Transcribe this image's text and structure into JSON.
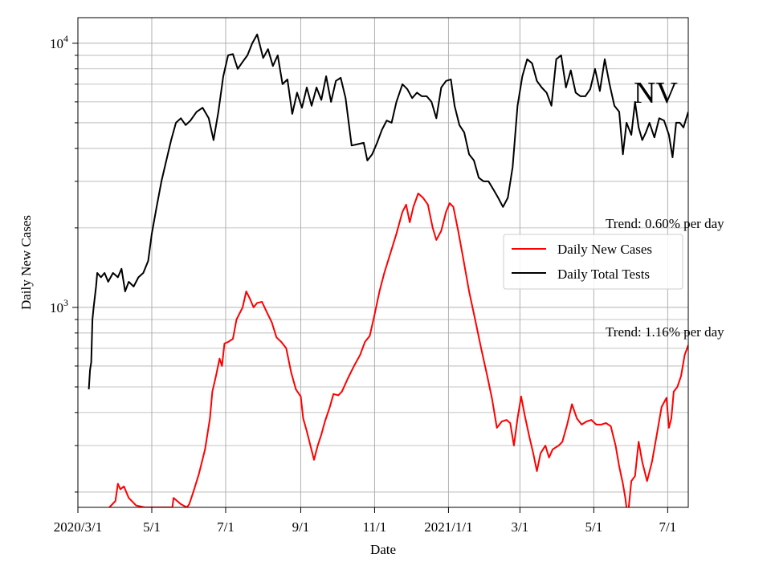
{
  "chart_data": {
    "type": "line",
    "title": "",
    "xlabel": "Date",
    "ylabel": "Daily New Cases",
    "yscale": "log",
    "ylim": [
      175,
      12500
    ],
    "xlim": [
      "2020-03-01",
      "2021-07-18"
    ],
    "grid": true,
    "legend_position": "right-middle",
    "x_ticks": [
      {
        "date": "2020-03-01",
        "label": "2020/3/1"
      },
      {
        "date": "2020-05-01",
        "label": "5/1"
      },
      {
        "date": "2020-07-01",
        "label": "7/1"
      },
      {
        "date": "2020-09-01",
        "label": "9/1"
      },
      {
        "date": "2020-11-01",
        "label": "11/1"
      },
      {
        "date": "2021-01-01",
        "label": "2021/1/1"
      },
      {
        "date": "2021-03-01",
        "label": "3/1"
      },
      {
        "date": "2021-05-01",
        "label": "5/1"
      },
      {
        "date": "2021-07-01",
        "label": "7/1"
      }
    ],
    "y_major_ticks": [
      {
        "value": 1000,
        "base": "10",
        "exp": "3"
      },
      {
        "value": 10000,
        "base": "10",
        "exp": "4"
      }
    ],
    "series": [
      {
        "name": "Daily New Cases",
        "color": "#ff0000",
        "points": [
          [
            "2020-03-27",
            175
          ],
          [
            "2020-04-01",
            185
          ],
          [
            "2020-04-03",
            215
          ],
          [
            "2020-04-05",
            205
          ],
          [
            "2020-04-08",
            210
          ],
          [
            "2020-04-12",
            190
          ],
          [
            "2020-04-18",
            178
          ],
          [
            "2020-04-25",
            175
          ],
          [
            "2020-05-18",
            175
          ],
          [
            "2020-05-19",
            190
          ],
          [
            "2020-05-25",
            180
          ],
          [
            "2020-05-30",
            175
          ],
          [
            "2020-06-01",
            180
          ],
          [
            "2020-06-05",
            205
          ],
          [
            "2020-06-09",
            235
          ],
          [
            "2020-06-14",
            290
          ],
          [
            "2020-06-18",
            380
          ],
          [
            "2020-06-20",
            480
          ],
          [
            "2020-06-23",
            550
          ],
          [
            "2020-06-26",
            640
          ],
          [
            "2020-06-28",
            600
          ],
          [
            "2020-06-30",
            730
          ],
          [
            "2020-07-03",
            740
          ],
          [
            "2020-07-07",
            760
          ],
          [
            "2020-07-10",
            900
          ],
          [
            "2020-07-15",
            1000
          ],
          [
            "2020-07-18",
            1150
          ],
          [
            "2020-07-21",
            1080
          ],
          [
            "2020-07-24",
            1000
          ],
          [
            "2020-07-27",
            1040
          ],
          [
            "2020-07-31",
            1050
          ],
          [
            "2020-08-04",
            960
          ],
          [
            "2020-08-08",
            880
          ],
          [
            "2020-08-12",
            770
          ],
          [
            "2020-08-16",
            740
          ],
          [
            "2020-08-20",
            700
          ],
          [
            "2020-08-24",
            570
          ],
          [
            "2020-08-28",
            490
          ],
          [
            "2020-09-01",
            460
          ],
          [
            "2020-09-03",
            380
          ],
          [
            "2020-09-06",
            340
          ],
          [
            "2020-09-09",
            300
          ],
          [
            "2020-09-12",
            265
          ],
          [
            "2020-09-15",
            300
          ],
          [
            "2020-09-18",
            330
          ],
          [
            "2020-09-21",
            370
          ],
          [
            "2020-09-25",
            420
          ],
          [
            "2020-09-28",
            470
          ],
          [
            "2020-10-02",
            465
          ],
          [
            "2020-10-05",
            480
          ],
          [
            "2020-10-10",
            540
          ],
          [
            "2020-10-15",
            600
          ],
          [
            "2020-10-20",
            660
          ],
          [
            "2020-10-24",
            740
          ],
          [
            "2020-10-28",
            780
          ],
          [
            "2020-11-01",
            940
          ],
          [
            "2020-11-05",
            1150
          ],
          [
            "2020-11-09",
            1350
          ],
          [
            "2020-11-14",
            1600
          ],
          [
            "2020-11-19",
            1900
          ],
          [
            "2020-11-24",
            2300
          ],
          [
            "2020-11-27",
            2450
          ],
          [
            "2020-11-30",
            2100
          ],
          [
            "2020-12-03",
            2400
          ],
          [
            "2020-12-07",
            2700
          ],
          [
            "2020-12-11",
            2600
          ],
          [
            "2020-12-15",
            2450
          ],
          [
            "2020-12-19",
            2000
          ],
          [
            "2020-12-22",
            1800
          ],
          [
            "2020-12-26",
            1950
          ],
          [
            "2020-12-30",
            2300
          ],
          [
            "2021-01-02",
            2480
          ],
          [
            "2021-01-05",
            2400
          ],
          [
            "2021-01-09",
            1950
          ],
          [
            "2021-01-13",
            1550
          ],
          [
            "2021-01-18",
            1150
          ],
          [
            "2021-01-23",
            900
          ],
          [
            "2021-01-28",
            700
          ],
          [
            "2021-02-02",
            550
          ],
          [
            "2021-02-06",
            450
          ],
          [
            "2021-02-10",
            350
          ],
          [
            "2021-02-14",
            370
          ],
          [
            "2021-02-18",
            375
          ],
          [
            "2021-02-21",
            365
          ],
          [
            "2021-02-24",
            300
          ],
          [
            "2021-02-27",
            380
          ],
          [
            "2021-03-02",
            460
          ],
          [
            "2021-03-05",
            390
          ],
          [
            "2021-03-09",
            320
          ],
          [
            "2021-03-12",
            280
          ],
          [
            "2021-03-15",
            240
          ],
          [
            "2021-03-18",
            280
          ],
          [
            "2021-03-22",
            300
          ],
          [
            "2021-03-25",
            270
          ],
          [
            "2021-03-28",
            290
          ],
          [
            "2021-04-02",
            300
          ],
          [
            "2021-04-05",
            310
          ],
          [
            "2021-04-09",
            360
          ],
          [
            "2021-04-13",
            430
          ],
          [
            "2021-04-17",
            380
          ],
          [
            "2021-04-21",
            360
          ],
          [
            "2021-04-25",
            370
          ],
          [
            "2021-04-29",
            375
          ],
          [
            "2021-05-03",
            360
          ],
          [
            "2021-05-07",
            360
          ],
          [
            "2021-05-11",
            365
          ],
          [
            "2021-05-15",
            355
          ],
          [
            "2021-05-19",
            300
          ],
          [
            "2021-05-22",
            250
          ],
          [
            "2021-05-25",
            215
          ],
          [
            "2021-05-27",
            190
          ],
          [
            "2021-05-29",
            160
          ],
          [
            "2021-06-01",
            220
          ],
          [
            "2021-06-04",
            230
          ],
          [
            "2021-06-07",
            310
          ],
          [
            "2021-06-10",
            260
          ],
          [
            "2021-06-14",
            220
          ],
          [
            "2021-06-18",
            260
          ],
          [
            "2021-06-22",
            330
          ],
          [
            "2021-06-26",
            420
          ],
          [
            "2021-06-30",
            455
          ],
          [
            "2021-07-02",
            350
          ],
          [
            "2021-07-04",
            380
          ],
          [
            "2021-07-06",
            480
          ],
          [
            "2021-07-09",
            500
          ],
          [
            "2021-07-12",
            550
          ],
          [
            "2021-07-15",
            660
          ],
          [
            "2021-07-18",
            720
          ]
        ]
      },
      {
        "name": "Daily Total Tests",
        "color": "#000000",
        "points": [
          [
            "2020-03-10",
            490
          ],
          [
            "2020-03-11",
            580
          ],
          [
            "2020-03-12",
            620
          ],
          [
            "2020-03-13",
            900
          ],
          [
            "2020-03-14",
            1000
          ],
          [
            "2020-03-16",
            1200
          ],
          [
            "2020-03-17",
            1350
          ],
          [
            "2020-03-20",
            1300
          ],
          [
            "2020-03-23",
            1350
          ],
          [
            "2020-03-26",
            1250
          ],
          [
            "2020-03-30",
            1350
          ],
          [
            "2020-04-03",
            1300
          ],
          [
            "2020-04-06",
            1400
          ],
          [
            "2020-04-09",
            1150
          ],
          [
            "2020-04-12",
            1250
          ],
          [
            "2020-04-16",
            1200
          ],
          [
            "2020-04-20",
            1300
          ],
          [
            "2020-04-24",
            1350
          ],
          [
            "2020-04-28",
            1500
          ],
          [
            "2020-05-01",
            1900
          ],
          [
            "2020-05-05",
            2400
          ],
          [
            "2020-05-09",
            3000
          ],
          [
            "2020-05-13",
            3600
          ],
          [
            "2020-05-17",
            4300
          ],
          [
            "2020-05-21",
            5000
          ],
          [
            "2020-05-25",
            5200
          ],
          [
            "2020-05-29",
            4900
          ],
          [
            "2020-06-02",
            5100
          ],
          [
            "2020-06-07",
            5500
          ],
          [
            "2020-06-12",
            5700
          ],
          [
            "2020-06-17",
            5200
          ],
          [
            "2020-06-21",
            4300
          ],
          [
            "2020-06-25",
            5500
          ],
          [
            "2020-06-29",
            7500
          ],
          [
            "2020-07-03",
            9000
          ],
          [
            "2020-07-07",
            9100
          ],
          [
            "2020-07-11",
            8000
          ],
          [
            "2020-07-15",
            8500
          ],
          [
            "2020-07-19",
            9000
          ],
          [
            "2020-07-23",
            10000
          ],
          [
            "2020-07-27",
            10800
          ],
          [
            "2020-08-01",
            8800
          ],
          [
            "2020-08-05",
            9500
          ],
          [
            "2020-08-09",
            8200
          ],
          [
            "2020-08-13",
            9000
          ],
          [
            "2020-08-17",
            7000
          ],
          [
            "2020-08-21",
            7300
          ],
          [
            "2020-08-25",
            5400
          ],
          [
            "2020-08-29",
            6500
          ],
          [
            "2020-09-02",
            5700
          ],
          [
            "2020-09-06",
            6800
          ],
          [
            "2020-09-10",
            5800
          ],
          [
            "2020-09-14",
            6800
          ],
          [
            "2020-09-18",
            6100
          ],
          [
            "2020-09-22",
            7500
          ],
          [
            "2020-09-26",
            6000
          ],
          [
            "2020-09-30",
            7200
          ],
          [
            "2020-10-04",
            7400
          ],
          [
            "2020-10-08",
            6200
          ],
          [
            "2020-10-13",
            4100
          ],
          [
            "2020-10-18",
            4150
          ],
          [
            "2020-10-23",
            4200
          ],
          [
            "2020-10-26",
            3600
          ],
          [
            "2020-10-30",
            3800
          ],
          [
            "2020-11-03",
            4200
          ],
          [
            "2020-11-07",
            4700
          ],
          [
            "2020-11-11",
            5100
          ],
          [
            "2020-11-15",
            5000
          ],
          [
            "2020-11-19",
            6000
          ],
          [
            "2020-11-24",
            7000
          ],
          [
            "2020-11-28",
            6700
          ],
          [
            "2020-12-02",
            6200
          ],
          [
            "2020-12-06",
            6500
          ],
          [
            "2020-12-10",
            6300
          ],
          [
            "2020-12-14",
            6300
          ],
          [
            "2020-12-18",
            6000
          ],
          [
            "2020-12-22",
            5200
          ],
          [
            "2020-12-26",
            6800
          ],
          [
            "2020-12-30",
            7200
          ],
          [
            "2021-01-03",
            7300
          ],
          [
            "2021-01-06",
            5800
          ],
          [
            "2021-01-10",
            4900
          ],
          [
            "2021-01-14",
            4600
          ],
          [
            "2021-01-18",
            3800
          ],
          [
            "2021-01-22",
            3600
          ],
          [
            "2021-01-26",
            3100
          ],
          [
            "2021-01-30",
            3000
          ],
          [
            "2021-02-03",
            3000
          ],
          [
            "2021-02-07",
            2800
          ],
          [
            "2021-02-11",
            2600
          ],
          [
            "2021-02-15",
            2400
          ],
          [
            "2021-02-19",
            2600
          ],
          [
            "2021-02-23",
            3400
          ],
          [
            "2021-02-27",
            5800
          ],
          [
            "2021-03-03",
            7500
          ],
          [
            "2021-03-07",
            8700
          ],
          [
            "2021-03-11",
            8400
          ],
          [
            "2021-03-15",
            7200
          ],
          [
            "2021-03-19",
            6800
          ],
          [
            "2021-03-23",
            6500
          ],
          [
            "2021-03-27",
            5800
          ],
          [
            "2021-03-31",
            8700
          ],
          [
            "2021-04-04",
            9000
          ],
          [
            "2021-04-08",
            6800
          ],
          [
            "2021-04-12",
            7900
          ],
          [
            "2021-04-16",
            6500
          ],
          [
            "2021-04-20",
            6300
          ],
          [
            "2021-04-24",
            6300
          ],
          [
            "2021-04-28",
            6700
          ],
          [
            "2021-05-02",
            8000
          ],
          [
            "2021-05-06",
            6600
          ],
          [
            "2021-05-10",
            8700
          ],
          [
            "2021-05-14",
            7000
          ],
          [
            "2021-05-18",
            5800
          ],
          [
            "2021-05-22",
            5500
          ],
          [
            "2021-05-25",
            3800
          ],
          [
            "2021-05-28",
            5000
          ],
          [
            "2021-06-01",
            4500
          ],
          [
            "2021-06-04",
            6000
          ],
          [
            "2021-06-07",
            4800
          ],
          [
            "2021-06-10",
            4300
          ],
          [
            "2021-06-13",
            4600
          ],
          [
            "2021-06-16",
            5000
          ],
          [
            "2021-06-20",
            4400
          ],
          [
            "2021-06-24",
            5200
          ],
          [
            "2021-06-28",
            5100
          ],
          [
            "2021-07-02",
            4500
          ],
          [
            "2021-07-05",
            3700
          ],
          [
            "2021-07-08",
            5000
          ],
          [
            "2021-07-11",
            5000
          ],
          [
            "2021-07-14",
            4800
          ],
          [
            "2021-07-18",
            5500
          ]
        ]
      }
    ],
    "annotations": [
      {
        "text": "NV",
        "role": "state-label"
      },
      {
        "text": "Trend: 0.60% per day",
        "role": "trend-tests"
      },
      {
        "text": "Trend: 1.16% per day",
        "role": "trend-cases"
      }
    ]
  }
}
